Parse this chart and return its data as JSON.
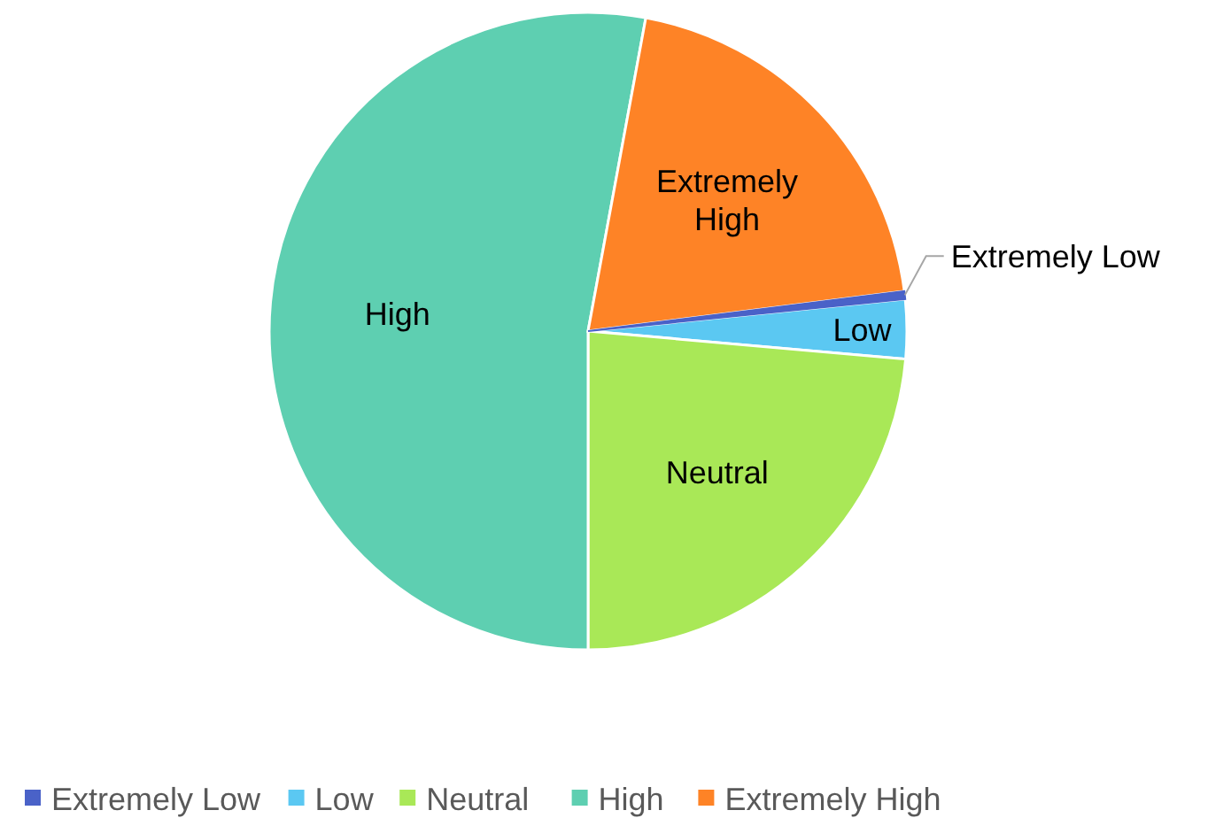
{
  "chart_data": {
    "type": "pie",
    "categories": [
      "Extremely Low",
      "Low",
      "Neutral",
      "High",
      "Extremely High"
    ],
    "values": [
      0.4,
      3.0,
      23.6,
      52.9,
      20.1
    ],
    "colors": [
      "#4a62c8",
      "#5bc8f2",
      "#a9e857",
      "#5ecfb1",
      "#fe8326"
    ],
    "legend": "bottom"
  }
}
